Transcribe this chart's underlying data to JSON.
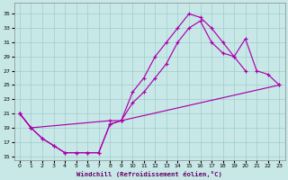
{
  "background_color": "#c8e8e8",
  "grid_color": "#a0cccc",
  "line_color": "#aa00aa",
  "xlabel": "Windchill (Refroidissement éolien,°C)",
  "ylim": [
    14.5,
    36.5
  ],
  "xlim": [
    -0.5,
    23.5
  ],
  "yticks": [
    15,
    17,
    19,
    21,
    23,
    25,
    27,
    29,
    31,
    33,
    35
  ],
  "xticks": [
    0,
    1,
    2,
    3,
    4,
    5,
    6,
    7,
    8,
    9,
    10,
    11,
    12,
    13,
    14,
    15,
    16,
    17,
    18,
    19,
    20,
    21,
    22,
    23
  ],
  "curve1_x": [
    0,
    1,
    2,
    3,
    4,
    5,
    6,
    7,
    8,
    9,
    10,
    11,
    12,
    13,
    14,
    15,
    16,
    17,
    18,
    19,
    20
  ],
  "curve1_y": [
    21,
    19,
    17.5,
    16.5,
    15.5,
    15.5,
    15.5,
    15.5,
    19.5,
    20.0,
    24.0,
    26.0,
    29.0,
    31.0,
    33.0,
    35.0,
    34.5,
    33.0,
    31.0,
    29.0,
    27.0
  ],
  "curve2_x": [
    0,
    1,
    2,
    3,
    4,
    5,
    6,
    7,
    8,
    9,
    10,
    11,
    12,
    13,
    14,
    15,
    16,
    17,
    18,
    19,
    20,
    21,
    22,
    23
  ],
  "curve2_y": [
    21.0,
    19.0,
    17.5,
    16.5,
    15.5,
    15.5,
    15.5,
    15.5,
    19.5,
    20.0,
    22.5,
    24.0,
    26.0,
    28.0,
    31.0,
    33.0,
    34.0,
    31.0,
    29.5,
    29.0,
    31.5,
    27.0,
    26.5,
    25.0
  ],
  "curve3_x": [
    0,
    1,
    8,
    9,
    23
  ],
  "curve3_y": [
    21.0,
    19.0,
    20.0,
    20.0,
    25.0
  ]
}
